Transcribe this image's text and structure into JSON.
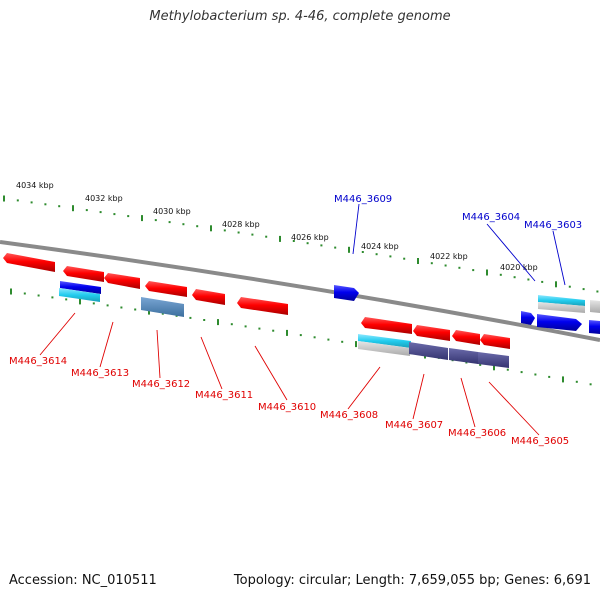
{
  "title": "Methylobacterium sp. 4-46, complete genome",
  "footer": {
    "accession": "Accession: NC_010511",
    "summary": "Topology: circular; Length: 7,659,055 bp; Genes: 6,691"
  },
  "colors": {
    "backbone": "#8a8a8a",
    "ticks": "#2e8b2e",
    "forward_gene": "#ff0000",
    "reverse_label": "#e00000",
    "forward_label": "#0000cc",
    "blue_gene": "#0000ee",
    "cyan_gene": "#22ccee",
    "steel_gene": "#4f86b8",
    "slate_gene": "#4a4a8c"
  },
  "scale_labels": [
    "4034 kbp",
    "4032 kbp",
    "4030 kbp",
    "4028 kbp",
    "4026 kbp",
    "4024 kbp",
    "4022 kbp",
    "4020 kbp"
  ],
  "gene_labels_top": [
    "M446_3609",
    "M446_3604",
    "M446_3603"
  ],
  "gene_labels_bottom": [
    "M446_3614",
    "M446_3613",
    "M446_3612",
    "M446_3611",
    "M446_3610",
    "M446_3608",
    "M446_3607",
    "M446_3606",
    "M446_3605"
  ]
}
